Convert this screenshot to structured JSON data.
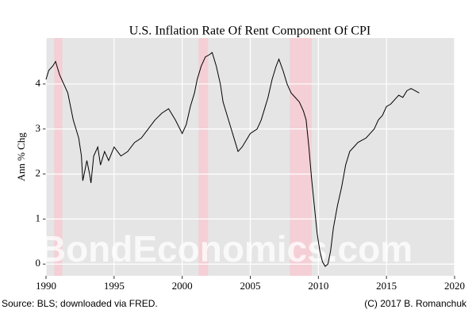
{
  "chart_data": {
    "type": "line",
    "title": "U.S. Inflation Rate Of Rent Component Of CPI",
    "y_label": "Ann % Chg",
    "watermark": "BondEconomics.com",
    "source": "Source: BLS; downloaded via FRED.",
    "credit": "(C) 2017 B. Romanchuk",
    "color": "#000000",
    "recession_color": "#f4cfd6",
    "grid": true,
    "xlim": [
      1990,
      2020
    ],
    "xticks": [
      1990,
      1995,
      2000,
      2005,
      2010,
      2015,
      2020
    ],
    "ylim": [
      -0.26,
      5.02
    ],
    "yticks": [
      0,
      1,
      2,
      3,
      4
    ],
    "recessions": [
      [
        1990.6,
        1991.2
      ],
      [
        2001.2,
        2001.9
      ],
      [
        2007.9,
        2009.5
      ]
    ],
    "x": [
      1990.0,
      1990.2,
      1990.5,
      1990.7,
      1991.0,
      1991.3,
      1991.6,
      1991.8,
      1992.0,
      1992.2,
      1992.4,
      1992.6,
      1992.7,
      1992.8,
      1993.0,
      1993.2,
      1993.3,
      1993.5,
      1993.8,
      1994.0,
      1994.3,
      1994.6,
      1995.0,
      1995.5,
      1996.0,
      1996.5,
      1997.0,
      1997.5,
      1998.0,
      1998.5,
      1999.0,
      1999.5,
      2000.0,
      2000.3,
      2000.6,
      2000.9,
      2001.1,
      2001.4,
      2001.7,
      2002.0,
      2002.2,
      2002.5,
      2002.8,
      2003.0,
      2003.3,
      2003.6,
      2003.9,
      2004.1,
      2004.4,
      2004.8,
      2005.0,
      2005.5,
      2005.8,
      2006.0,
      2006.3,
      2006.6,
      2006.9,
      2007.1,
      2007.4,
      2007.7,
      2008.0,
      2008.3,
      2008.6,
      2008.9,
      2009.1,
      2009.3,
      2009.5,
      2009.7,
      2009.9,
      2010.1,
      2010.3,
      2010.5,
      2010.7,
      2010.9,
      2011.1,
      2011.4,
      2011.7,
      2012.0,
      2012.3,
      2012.6,
      2012.9,
      2013.2,
      2013.5,
      2013.8,
      2014.1,
      2014.4,
      2014.7,
      2015.0,
      2015.3,
      2015.6,
      2015.9,
      2016.2,
      2016.5,
      2016.8,
      2017.1,
      2017.4
    ],
    "values": [
      4.1,
      4.3,
      4.4,
      4.5,
      4.2,
      4.0,
      3.8,
      3.5,
      3.2,
      3.0,
      2.8,
      2.4,
      1.85,
      2.0,
      2.3,
      2.0,
      1.8,
      2.4,
      2.6,
      2.2,
      2.5,
      2.3,
      2.6,
      2.4,
      2.5,
      2.7,
      2.8,
      3.0,
      3.2,
      3.35,
      3.45,
      3.2,
      2.9,
      3.1,
      3.5,
      3.8,
      4.1,
      4.4,
      4.6,
      4.65,
      4.7,
      4.4,
      4.0,
      3.6,
      3.3,
      3.0,
      2.7,
      2.5,
      2.6,
      2.8,
      2.9,
      3.0,
      3.2,
      3.4,
      3.7,
      4.1,
      4.4,
      4.55,
      4.3,
      4.0,
      3.8,
      3.7,
      3.6,
      3.4,
      3.2,
      2.6,
      1.9,
      1.3,
      0.7,
      0.3,
      0.05,
      -0.05,
      0.0,
      0.3,
      0.8,
      1.3,
      1.7,
      2.2,
      2.5,
      2.6,
      2.7,
      2.75,
      2.8,
      2.9,
      3.0,
      3.2,
      3.3,
      3.5,
      3.55,
      3.65,
      3.75,
      3.7,
      3.85,
      3.9,
      3.85,
      3.8
    ]
  }
}
